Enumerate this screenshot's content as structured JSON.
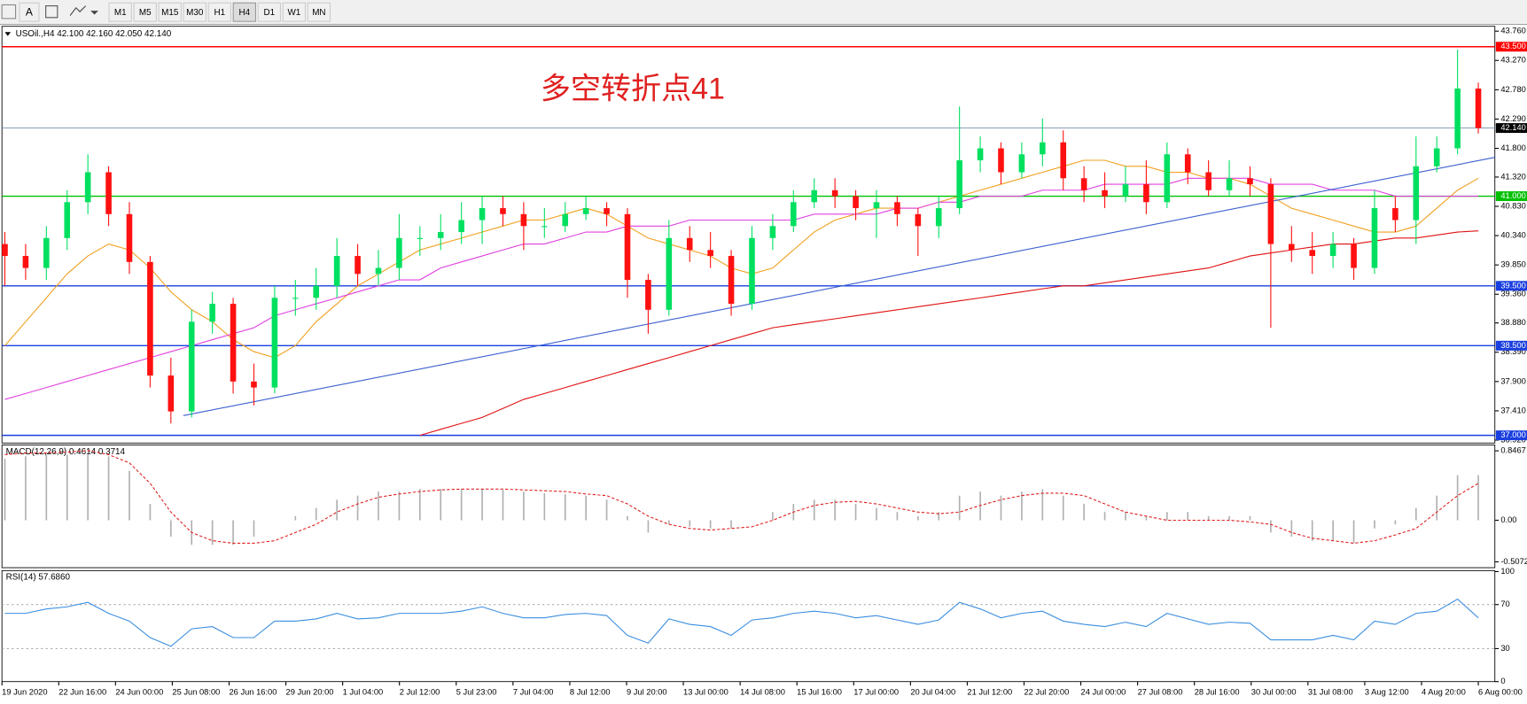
{
  "toolbar": {
    "text_tool": "A",
    "timeframes": [
      "M1",
      "M5",
      "M15",
      "M30",
      "H1",
      "H4",
      "D1",
      "W1",
      "MN"
    ],
    "active": 5
  },
  "chart_data": {
    "type": "candlestick",
    "title": "USOil.,H4  42.100 42.160 42.050 42.140",
    "annotation": "多空转折点41",
    "up_color": "#00e060",
    "down_color": "#ff1010",
    "ylim": [
      36.92,
      43.76
    ],
    "yticks": [
      {
        "value": 43.76,
        "label": "43.760"
      },
      {
        "value": 43.27,
        "label": "43.270"
      },
      {
        "value": 42.78,
        "label": "42.780"
      },
      {
        "value": 42.29,
        "label": "42.290"
      },
      {
        "value": 41.8,
        "label": "41.800"
      },
      {
        "value": 41.32,
        "label": "41.320"
      },
      {
        "value": 40.83,
        "label": "40.830"
      },
      {
        "value": 40.34,
        "label": "40.340"
      },
      {
        "value": 39.85,
        "label": "39.850"
      },
      {
        "value": 39.36,
        "label": "39.360"
      },
      {
        "value": 38.88,
        "label": "38.880"
      },
      {
        "value": 38.39,
        "label": "38.390"
      },
      {
        "value": 37.9,
        "label": "37.900"
      },
      {
        "value": 37.41,
        "label": "37.410"
      },
      {
        "value": 36.92,
        "label": "36.920"
      }
    ],
    "hlines": [
      {
        "value": 43.5,
        "label": "43.500",
        "color": "#ff0000"
      },
      {
        "value": 41.0,
        "label": "41.000",
        "color": "#00c000"
      },
      {
        "value": 39.5,
        "label": "39.500",
        "color": "#1a3fe0"
      },
      {
        "value": 38.5,
        "label": "38.500",
        "color": "#1a3fe0"
      },
      {
        "value": 37.0,
        "label": "37.000",
        "color": "#1a3fe0"
      }
    ],
    "current": {
      "value": 42.14,
      "label": "42.140",
      "color": "#7a8fb0"
    },
    "trendline": {
      "from": [
        8.6,
        37.33
      ],
      "to": [
        71.8,
        41.65
      ],
      "color": "#3a5fd0"
    },
    "ohlc": [
      [
        40.2,
        40.4,
        39.5,
        40.0
      ],
      [
        40.0,
        40.2,
        39.6,
        39.8
      ],
      [
        39.8,
        40.5,
        39.6,
        40.3
      ],
      [
        40.3,
        41.1,
        40.1,
        40.9
      ],
      [
        40.9,
        41.7,
        40.7,
        41.4
      ],
      [
        41.4,
        41.5,
        40.5,
        40.7
      ],
      [
        40.7,
        40.9,
        39.7,
        39.9
      ],
      [
        39.9,
        40.0,
        37.8,
        38.0
      ],
      [
        38.0,
        38.3,
        37.2,
        37.4
      ],
      [
        37.4,
        39.1,
        37.3,
        38.9
      ],
      [
        38.9,
        39.4,
        38.7,
        39.2
      ],
      [
        39.2,
        39.3,
        37.7,
        37.9
      ],
      [
        37.9,
        38.2,
        37.5,
        37.8
      ],
      [
        37.8,
        39.5,
        37.7,
        39.3
      ],
      [
        39.3,
        39.6,
        39.0,
        39.3
      ],
      [
        39.3,
        39.8,
        39.1,
        39.5
      ],
      [
        39.5,
        40.3,
        39.3,
        40.0
      ],
      [
        40.0,
        40.2,
        39.5,
        39.7
      ],
      [
        39.7,
        40.1,
        39.5,
        39.8
      ],
      [
        39.8,
        40.7,
        39.6,
        40.3
      ],
      [
        40.3,
        40.5,
        40.0,
        40.3
      ],
      [
        40.3,
        40.7,
        40.1,
        40.4
      ],
      [
        40.4,
        40.9,
        40.2,
        40.6
      ],
      [
        40.6,
        41.0,
        40.2,
        40.8
      ],
      [
        40.8,
        41.0,
        40.5,
        40.7
      ],
      [
        40.7,
        40.9,
        40.1,
        40.5
      ],
      [
        40.5,
        40.8,
        40.3,
        40.5
      ],
      [
        40.5,
        40.9,
        40.4,
        40.7
      ],
      [
        40.7,
        41.0,
        40.6,
        40.8
      ],
      [
        40.8,
        40.9,
        40.5,
        40.7
      ],
      [
        40.7,
        40.8,
        39.3,
        39.6
      ],
      [
        39.6,
        39.7,
        38.7,
        39.1
      ],
      [
        39.1,
        40.6,
        39.0,
        40.3
      ],
      [
        40.3,
        40.5,
        39.9,
        40.1
      ],
      [
        40.1,
        40.4,
        39.8,
        40.0
      ],
      [
        40.0,
        40.1,
        39.0,
        39.2
      ],
      [
        39.2,
        40.5,
        39.1,
        40.3
      ],
      [
        40.3,
        40.7,
        40.1,
        40.5
      ],
      [
        40.5,
        41.1,
        40.4,
        40.9
      ],
      [
        40.9,
        41.3,
        40.8,
        41.1
      ],
      [
        41.1,
        41.3,
        40.8,
        41.0
      ],
      [
        41.0,
        41.1,
        40.6,
        40.8
      ],
      [
        40.8,
        41.1,
        40.3,
        40.9
      ],
      [
        40.9,
        41.0,
        40.5,
        40.7
      ],
      [
        40.7,
        40.8,
        40.0,
        40.5
      ],
      [
        40.5,
        41.0,
        40.3,
        40.8
      ],
      [
        40.8,
        42.5,
        40.7,
        41.6
      ],
      [
        41.6,
        42.0,
        41.4,
        41.8
      ],
      [
        41.8,
        41.9,
        41.2,
        41.4
      ],
      [
        41.4,
        41.9,
        41.3,
        41.7
      ],
      [
        41.7,
        42.3,
        41.5,
        41.9
      ],
      [
        41.9,
        42.1,
        41.1,
        41.3
      ],
      [
        41.3,
        41.5,
        40.9,
        41.1
      ],
      [
        41.1,
        41.4,
        40.8,
        41.0
      ],
      [
        41.0,
        41.5,
        40.9,
        41.2
      ],
      [
        41.2,
        41.6,
        40.7,
        40.9
      ],
      [
        40.9,
        41.9,
        40.8,
        41.7
      ],
      [
        41.7,
        41.8,
        41.2,
        41.4
      ],
      [
        41.4,
        41.6,
        41.0,
        41.1
      ],
      [
        41.1,
        41.6,
        41.0,
        41.3
      ],
      [
        41.3,
        41.5,
        41.0,
        41.2
      ],
      [
        41.2,
        41.3,
        38.8,
        40.2
      ],
      [
        40.2,
        40.5,
        39.9,
        40.1
      ],
      [
        40.1,
        40.4,
        39.7,
        40.0
      ],
      [
        40.0,
        40.4,
        39.8,
        40.2
      ],
      [
        40.2,
        40.3,
        39.6,
        39.8
      ],
      [
        39.8,
        41.1,
        39.7,
        40.8
      ],
      [
        40.8,
        41.0,
        40.4,
        40.6
      ],
      [
        40.6,
        42.0,
        40.2,
        41.5
      ],
      [
        41.5,
        42.0,
        41.4,
        41.8
      ],
      [
        41.8,
        43.45,
        41.7,
        42.8
      ],
      [
        42.8,
        42.9,
        42.05,
        42.14
      ]
    ],
    "ma": [
      {
        "color": "#f0a020",
        "values": [
          38.5,
          38.9,
          39.3,
          39.7,
          40.0,
          40.2,
          40.1,
          39.8,
          39.4,
          39.1,
          38.9,
          38.6,
          38.4,
          38.3,
          38.5,
          38.9,
          39.2,
          39.5,
          39.7,
          39.9,
          40.1,
          40.2,
          40.3,
          40.4,
          40.5,
          40.6,
          40.6,
          40.7,
          40.8,
          40.7,
          40.5,
          40.3,
          40.2,
          40.1,
          40.0,
          39.8,
          39.7,
          39.8,
          40.1,
          40.4,
          40.6,
          40.7,
          40.8,
          40.8,
          40.8,
          40.9,
          41.0,
          41.1,
          41.2,
          41.3,
          41.4,
          41.5,
          41.6,
          41.6,
          41.5,
          41.5,
          41.4,
          41.4,
          41.3,
          41.3,
          41.2,
          41.0,
          40.8,
          40.7,
          40.6,
          40.5,
          40.4,
          40.4,
          40.5,
          40.8,
          41.1,
          41.3
        ]
      },
      {
        "color": "#e040e0",
        "values": [
          37.6,
          37.7,
          37.8,
          37.9,
          38.0,
          38.1,
          38.2,
          38.3,
          38.4,
          38.5,
          38.6,
          38.7,
          38.8,
          39.0,
          39.1,
          39.2,
          39.3,
          39.4,
          39.5,
          39.6,
          39.6,
          39.8,
          39.9,
          40.0,
          40.1,
          40.2,
          40.2,
          40.3,
          40.4,
          40.4,
          40.5,
          40.5,
          40.5,
          40.6,
          40.6,
          40.6,
          40.6,
          40.6,
          40.6,
          40.7,
          40.7,
          40.7,
          40.7,
          40.8,
          40.8,
          40.9,
          40.9,
          41.0,
          41.0,
          41.0,
          41.1,
          41.1,
          41.1,
          41.2,
          41.2,
          41.2,
          41.2,
          41.3,
          41.3,
          41.3,
          41.3,
          41.2,
          41.2,
          41.2,
          41.1,
          41.1,
          41.1,
          41.0,
          41.0,
          41.0,
          41.0,
          41.0
        ]
      },
      {
        "color": "#e01010",
        "values": [
          null,
          null,
          null,
          null,
          null,
          null,
          null,
          null,
          null,
          null,
          null,
          null,
          null,
          null,
          null,
          null,
          null,
          null,
          null,
          null,
          37.0,
          37.1,
          37.2,
          37.3,
          37.45,
          37.6,
          37.7,
          37.8,
          37.9,
          38.0,
          38.1,
          38.2,
          38.3,
          38.4,
          38.5,
          38.6,
          38.7,
          38.8,
          38.85,
          38.9,
          38.95,
          39.0,
          39.05,
          39.1,
          39.15,
          39.2,
          39.25,
          39.3,
          39.35,
          39.4,
          39.45,
          39.5,
          39.5,
          39.55,
          39.6,
          39.65,
          39.7,
          39.75,
          39.8,
          39.9,
          40.0,
          40.05,
          40.1,
          40.15,
          40.2,
          40.2,
          40.25,
          40.3,
          40.3,
          40.35,
          40.4,
          40.42
        ]
      }
    ],
    "macd": {
      "title": "MACD(12,26,9) 0.4614 0.3714",
      "ylim": [
        -0.5072,
        0.8467
      ],
      "yticks": [
        0.8467,
        {
          "value": 0,
          "label": "0.00"
        },
        -0.5072
      ],
      "hist_color": "#b0b0b0",
      "signal_color": "#e02020",
      "histogram": [
        0.75,
        0.78,
        0.8,
        0.8,
        0.8,
        0.78,
        0.6,
        0.2,
        -0.2,
        -0.3,
        -0.3,
        -0.3,
        -0.2,
        0.0,
        0.05,
        0.15,
        0.25,
        0.3,
        0.35,
        0.35,
        0.38,
        0.38,
        0.38,
        0.38,
        0.37,
        0.35,
        0.33,
        0.32,
        0.3,
        0.25,
        0.05,
        -0.15,
        -0.05,
        -0.08,
        -0.1,
        -0.1,
        0.0,
        0.1,
        0.2,
        0.25,
        0.25,
        0.2,
        0.15,
        0.1,
        0.05,
        0.1,
        0.3,
        0.35,
        0.3,
        0.35,
        0.38,
        0.3,
        0.2,
        0.1,
        0.1,
        0.05,
        0.1,
        0.1,
        0.05,
        0.05,
        0.05,
        -0.15,
        -0.2,
        -0.25,
        -0.25,
        -0.28,
        -0.1,
        -0.05,
        0.15,
        0.3,
        0.55,
        0.55
      ],
      "signal": [
        0.8,
        0.82,
        0.82,
        0.83,
        0.85,
        0.8,
        0.7,
        0.45,
        0.1,
        -0.15,
        -0.25,
        -0.28,
        -0.28,
        -0.25,
        -0.15,
        -0.05,
        0.1,
        0.2,
        0.28,
        0.32,
        0.35,
        0.37,
        0.38,
        0.38,
        0.38,
        0.37,
        0.36,
        0.35,
        0.32,
        0.3,
        0.2,
        0.05,
        -0.05,
        -0.1,
        -0.12,
        -0.1,
        -0.08,
        0.0,
        0.1,
        0.18,
        0.22,
        0.23,
        0.2,
        0.15,
        0.1,
        0.08,
        0.1,
        0.18,
        0.25,
        0.3,
        0.33,
        0.33,
        0.3,
        0.2,
        0.1,
        0.05,
        0.0,
        0.0,
        0.0,
        0.0,
        -0.02,
        -0.05,
        -0.15,
        -0.22,
        -0.25,
        -0.28,
        -0.25,
        -0.18,
        -0.1,
        0.1,
        0.3,
        0.45
      ]
    },
    "rsi": {
      "title": "RSI(14) 57.6860",
      "ylim": [
        0,
        100
      ],
      "yticks": [
        100,
        70,
        30,
        0
      ],
      "color": "#3a8ee0",
      "values": [
        62,
        62,
        66,
        68,
        72,
        62,
        55,
        40,
        32,
        48,
        50,
        40,
        40,
        55,
        55,
        57,
        62,
        57,
        58,
        62,
        62,
        62,
        64,
        68,
        62,
        58,
        58,
        61,
        62,
        60,
        42,
        35,
        57,
        52,
        50,
        42,
        56,
        58,
        62,
        64,
        62,
        58,
        60,
        56,
        52,
        56,
        72,
        66,
        58,
        62,
        64,
        55,
        52,
        50,
        54,
        50,
        62,
        57,
        52,
        54,
        53,
        38,
        38,
        38,
        42,
        38,
        55,
        52,
        62,
        64,
        75,
        58
      ]
    },
    "x_labels": [
      "19 Jun 2020",
      "22 Jun 16:00",
      "24 Jun 00:00",
      "25 Jun 08:00",
      "26 Jun 16:00",
      "29 Jun 20:00",
      "1 Jul 04:00",
      "2 Jul 12:00",
      "5 Jul 23:00",
      "7 Jul 04:00",
      "8 Jul 12:00",
      "9 Jul 20:00",
      "13 Jul 00:00",
      "14 Jul 08:00",
      "15 Jul 16:00",
      "17 Jul 00:00",
      "20 Jul 04:00",
      "21 Jul 12:00",
      "22 Jul 20:00",
      "24 Jul 00:00",
      "27 Jul 08:00",
      "28 Jul 16:00",
      "30 Jul 00:00",
      "31 Jul 08:00",
      "3 Aug 12:00",
      "4 Aug 20:00",
      "6 Aug 00:00"
    ]
  }
}
